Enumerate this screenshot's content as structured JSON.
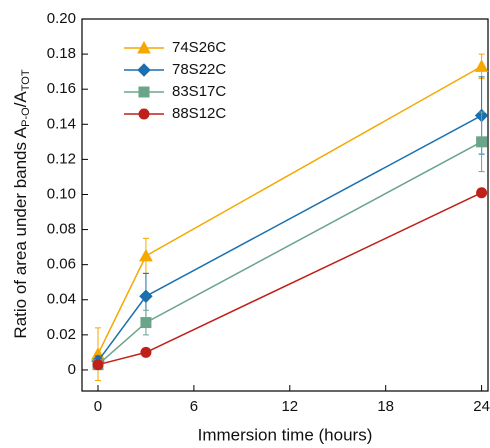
{
  "chart_data": {
    "type": "line",
    "xlabel": "Immersion time (hours)",
    "ylabel": [
      "Ratio of area under bands A",
      "P-O",
      "/A",
      "TOT"
    ],
    "x": [
      0,
      3,
      24
    ],
    "xlim": [
      -1,
      24.4
    ],
    "xticks": [
      0,
      6,
      12,
      18,
      24
    ],
    "ylim": [
      -0.012,
      0.2
    ],
    "yticks": [
      0,
      0.02,
      0.04,
      0.06,
      0.08,
      {
        "value": 0.1,
        "label": "0.10"
      },
      0.12,
      0.14,
      0.16,
      0.18,
      {
        "value": 0.2,
        "label": "0.20"
      }
    ],
    "legend": "upper left",
    "series": [
      {
        "name": "74S26C",
        "color": "#f5a800",
        "marker": "triangle",
        "values": [
          0.009,
          0.065,
          0.173
        ],
        "errors": [
          0.015,
          0.01,
          0.007
        ]
      },
      {
        "name": "78S22C",
        "color": "#1a6fae",
        "marker": "diamond",
        "values": [
          0.005,
          0.042,
          0.145
        ],
        "errors": [
          0.003,
          0.013,
          0.022
        ]
      },
      {
        "name": "83S17C",
        "color": "#6aa58a",
        "marker": "square",
        "values": [
          0.003,
          0.027,
          0.13
        ],
        "errors": [
          0.002,
          0.007,
          0.017
        ]
      },
      {
        "name": "88S12C",
        "color": "#c0201a",
        "marker": "circle",
        "values": [
          0.003,
          0.01,
          0.101
        ],
        "errors": [
          null,
          null,
          null
        ]
      }
    ]
  }
}
